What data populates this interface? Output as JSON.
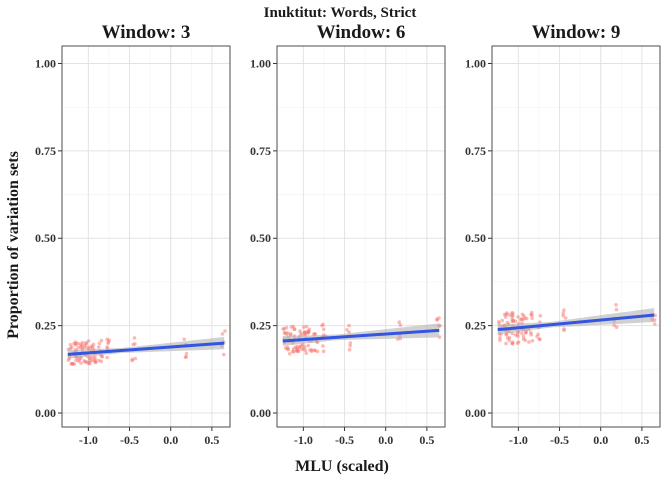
{
  "chart_data": {
    "type": "scatter",
    "title": "Inuktitut: Words, Strict",
    "xlabel": "MLU (scaled)",
    "ylabel": "Proportion of variation sets",
    "xlim": [
      -1.32,
      0.72
    ],
    "ylim": [
      -0.04,
      1.05
    ],
    "x_ticks": [
      -1.0,
      -0.5,
      0.0,
      0.5
    ],
    "x_tick_labels": [
      "-1.0",
      "-0.5",
      "0.0",
      "0.5"
    ],
    "y_ticks": [
      0.0,
      0.25,
      0.5,
      0.75,
      1.0
    ],
    "y_tick_labels": [
      "0.00",
      "0.25",
      "0.50",
      "0.75",
      "1.00"
    ],
    "grid": true,
    "point_color": "#f8766d",
    "line_color": "#3355e0",
    "band_color": "#b3b3b3",
    "mlu_values": [
      -1.22,
      -1.17,
      -1.13,
      -1.09,
      -1.05,
      -1.0,
      -0.96,
      -0.92,
      -0.85,
      -0.75,
      -0.45,
      0.17,
      0.64
    ],
    "panels": [
      {
        "title": "Window: 3",
        "fit": {
          "slope": 0.017,
          "intercept": 0.189,
          "se": 0.007
        },
        "spread": 0.035
      },
      {
        "title": "Window: 6",
        "fit": {
          "slope": 0.016,
          "intercept": 0.226,
          "se": 0.008
        },
        "spread": 0.04
      },
      {
        "title": "Window: 9",
        "fit": {
          "slope": 0.022,
          "intercept": 0.266,
          "se": 0.008
        },
        "spread": 0.045
      }
    ]
  }
}
